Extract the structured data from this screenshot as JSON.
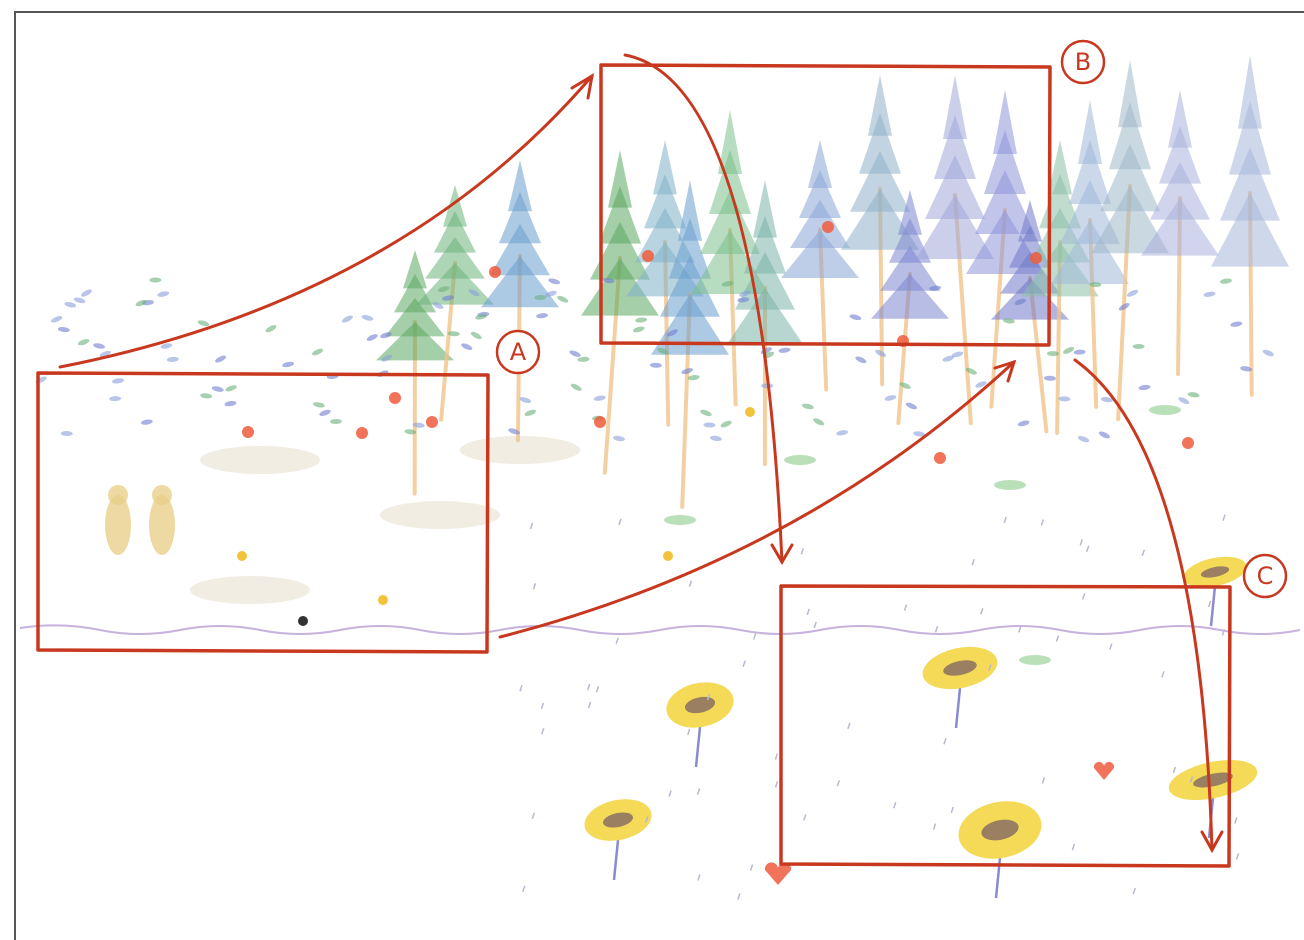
{
  "frames": [
    {
      "label": "A"
    },
    {
      "label": "B"
    },
    {
      "label": "C"
    }
  ]
}
